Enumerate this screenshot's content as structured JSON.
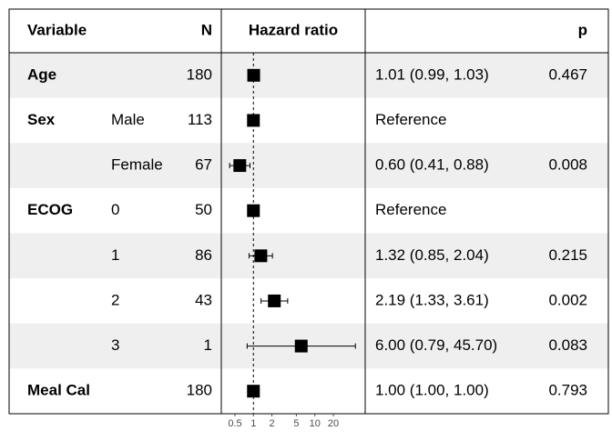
{
  "chart_data": {
    "type": "forest",
    "headers": {
      "variable": "Variable",
      "n": "N",
      "plot": "Hazard ratio",
      "p": "p"
    },
    "variables": [
      "Age",
      "Sex",
      null,
      "ECOG",
      null,
      null,
      null,
      "Meal Cal"
    ],
    "levels": [
      null,
      "Male",
      "Female",
      "0",
      "1",
      "2",
      "3",
      null
    ],
    "n": [
      180,
      113,
      67,
      50,
      86,
      43,
      1,
      180
    ],
    "values": [
      1.01,
      1,
      0.6,
      1,
      1.32,
      2.19,
      6.0,
      1.0
    ],
    "lower": [
      0.99,
      null,
      0.41,
      null,
      0.85,
      1.33,
      0.79,
      1.0
    ],
    "upper": [
      1.03,
      null,
      0.88,
      null,
      2.04,
      3.61,
      45.7,
      1.0
    ],
    "value_labels": [
      "1.01 (0.99, 1.03)",
      "Reference",
      "0.60 (0.41, 0.88)",
      "Reference",
      "1.32 (0.85, 2.04)",
      "2.19 (1.33, 3.61)",
      "6.00 (0.79, 45.70)",
      "1.00 (1.00, 1.00)"
    ],
    "p": [
      0.467,
      null,
      0.008,
      null,
      0.215,
      0.002,
      0.083,
      0.793
    ],
    "log_x": true,
    "reference_line": 1,
    "xlim": [
      0.3,
      66
    ],
    "xticks": [
      0.5,
      1,
      2,
      5,
      10,
      20
    ],
    "color": "#000000",
    "stripe_color": "#efefef"
  }
}
